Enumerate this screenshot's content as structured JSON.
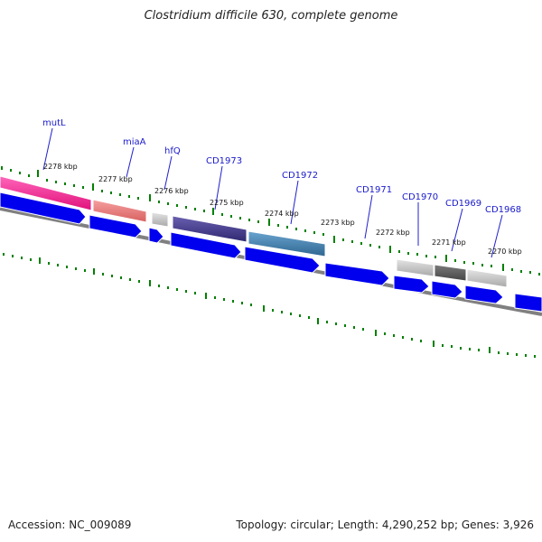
{
  "title": "Clostridium difficile 630, complete genome",
  "accession": "Accession: NC_009089",
  "topology": "Topology: circular; Length: 4,290,252 bp; Genes: 3,926",
  "gene_labels": [
    "mutL",
    "miaA",
    "hfQ",
    "CD1973",
    "CD1972",
    "CD1971",
    "CD1970",
    "CD1969",
    "CD1968"
  ],
  "ticks": [
    "2278 kbp",
    "2277 kbp",
    "2276 kbp",
    "2275 kbp",
    "2274 kbp",
    "2273 kbp",
    "2272 kbp",
    "2271 kbp",
    "2270 kbp"
  ],
  "colors": {
    "mutL": "#ff3399",
    "miaA": "#f08080",
    "hfQ": "#c8c8c8",
    "CD1973": "#483d8b",
    "CD1972": "#4682b4",
    "CD1970": "#c0c0c0",
    "CD1969": "#606060",
    "CD1968": "#b8b8b8",
    "cds": "#0000ee",
    "backbone": "#808080",
    "tick_green": "#008000",
    "label": "#1a1acc"
  }
}
